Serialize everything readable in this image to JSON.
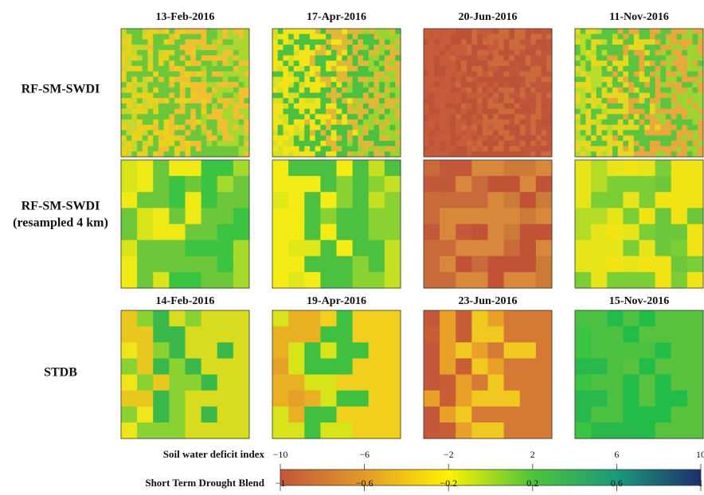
{
  "panels": {
    "titles_top": [
      "13-Feb-2016",
      "17-Apr-2016",
      "20-Jun-2016",
      "11-Nov-2016"
    ],
    "titles_bottom": [
      "14-Feb-2016",
      "19-Apr-2016",
      "23-Jun-2016",
      "15-Nov-2016"
    ],
    "row_labels": [
      "RF-SM-SWDI",
      "RF-SM-SWDI\n(resampled 4 km)",
      "STDB"
    ]
  },
  "colorbar": {
    "top": {
      "label": "Soil water deficit index",
      "lim": [
        -10,
        10
      ],
      "ticks": [
        {
          "value": -10,
          "label": "−10"
        },
        {
          "value": -6,
          "label": "−6"
        },
        {
          "value": -2,
          "label": "−2"
        },
        2,
        6,
        10
      ]
    },
    "bottom": {
      "label": "Short Term Drought Blend",
      "lim": [
        -1,
        1
      ],
      "ticks": [
        {
          "value": -1,
          "label": "−1"
        },
        {
          "value": -0.6,
          "label": "−0.6"
        },
        {
          "value": -0.2,
          "label": "−0.2"
        },
        0.2,
        0.6,
        1
      ]
    }
  }
}
